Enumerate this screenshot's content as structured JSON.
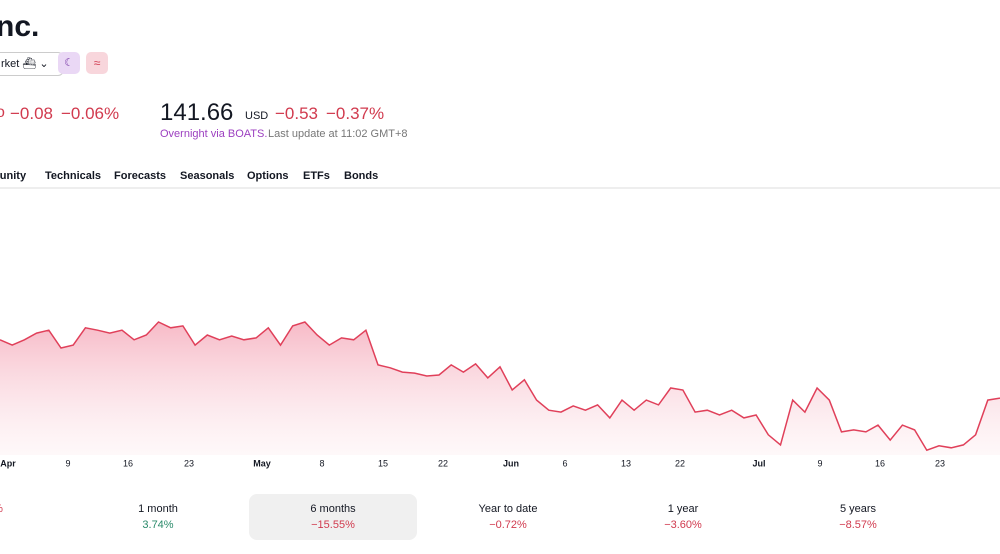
{
  "header": {
    "title": "nc.",
    "market_select": "rket"
  },
  "session": {
    "change": "−0.08",
    "change_pct": "−0.06%"
  },
  "extended": {
    "price": "141.66",
    "currency": "USD",
    "change": "−0.53",
    "change_pct": "−0.37%",
    "source": "Overnight via BOATS.",
    "updated": "Last update at 11:02 GMT+8"
  },
  "tabs": [
    "munity",
    "Technicals",
    "Forecasts",
    "Seasonals",
    "Options",
    "ETFs",
    "Bonds"
  ],
  "chart_data": {
    "type": "line",
    "color": "#e0405a",
    "xtick_labels": [
      "Apr",
      "9",
      "16",
      "23",
      "May",
      "8",
      "15",
      "22",
      "Jun",
      "6",
      "13",
      "22",
      "Jul",
      "9",
      "16",
      "23"
    ],
    "ylim": [
      130,
      185
    ],
    "values": [
      153.9,
      152.8,
      153.9,
      155.3,
      155.9,
      152.2,
      152.8,
      156.4,
      155.9,
      155.3,
      155.9,
      153.9,
      154.9,
      157.6,
      156.4,
      156.8,
      152.8,
      154.9,
      153.9,
      154.7,
      153.9,
      154.3,
      156.4,
      152.8,
      156.8,
      157.6,
      154.9,
      152.8,
      154.3,
      153.9,
      155.9,
      148.7,
      148.1,
      147.2,
      147.0,
      146.4,
      146.6,
      148.7,
      147.2,
      148.9,
      146.0,
      148.3,
      143.5,
      145.6,
      141.4,
      139.3,
      138.9,
      140.2,
      139.3,
      140.4,
      137.7,
      141.4,
      139.3,
      141.4,
      140.4,
      143.9,
      143.5,
      138.9,
      139.3,
      138.3,
      139.3,
      137.7,
      138.3,
      134.2,
      132.1,
      141.4,
      138.9,
      143.9,
      141.4,
      134.8,
      135.2,
      134.8,
      136.2,
      133.1,
      136.2,
      135.2,
      131.0,
      131.9,
      131.5,
      132.1,
      134.2,
      141.4,
      141.8
    ]
  },
  "periods": [
    {
      "label": "",
      "change": "%"
    },
    {
      "label": "1 month",
      "change": "3.74%"
    },
    {
      "label": "6 months",
      "change": "−15.55%"
    },
    {
      "label": "Year to date",
      "change": "−0.72%"
    },
    {
      "label": "1 year",
      "change": "−3.60%"
    },
    {
      "label": "5 years",
      "change": "−8.57%"
    }
  ]
}
